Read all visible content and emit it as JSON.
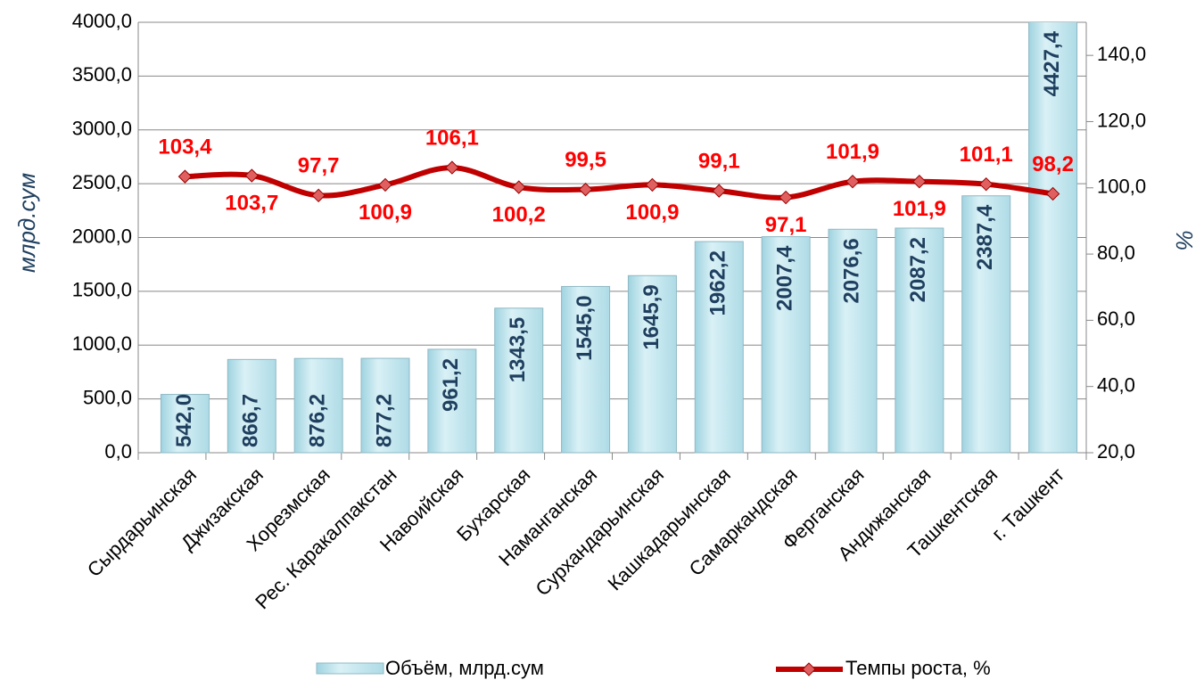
{
  "chart_data": {
    "type": "bar-line",
    "y_label": "млрд.сум",
    "y2_label": "%",
    "categories": [
      "Сырдарьинская",
      "Джизакская",
      "Хорезмская",
      "Рес. Каракалпакстан",
      "Навоийская",
      "Бухарская",
      "Наманганская",
      "Сурхандарьинская",
      "Кашкадарьинская",
      "Самаркандская",
      "Ферганская",
      "Андижанская",
      "Ташкентская",
      "г. Ташкент"
    ],
    "series": [
      {
        "name": "Объём, млрд.сум",
        "type": "bar",
        "color": "#bfe6ef",
        "axis": "y",
        "values": [
          542.0,
          866.7,
          876.2,
          877.2,
          961.2,
          1343.5,
          1545.0,
          1645.9,
          1962.2,
          2007.4,
          2076.6,
          2087.2,
          2387.4,
          4427.4
        ],
        "value_labels": [
          "542,0",
          "866,7",
          "876,2",
          "877,2",
          "961,2",
          "1343,5",
          "1545,0",
          "1645,9",
          "1962,2",
          "2007,4",
          "2076,6",
          "2087,2",
          "2387,4",
          "4427,4"
        ]
      },
      {
        "name": "Темпы роста, %",
        "type": "line",
        "color": "#c00000",
        "axis": "y2",
        "values": [
          103.4,
          103.7,
          97.7,
          100.9,
          106.1,
          100.2,
          99.5,
          100.9,
          99.1,
          97.1,
          101.9,
          101.9,
          101.1,
          98.2
        ],
        "value_labels": [
          "103,4",
          "103,7",
          "97,7",
          "100,9",
          "106,1",
          "100,2",
          "99,5",
          "100,9",
          "99,1",
          "97,1",
          "101,9",
          "101,9",
          "101,1",
          "98,2"
        ]
      }
    ],
    "ylim": [
      0,
      4000
    ],
    "yticks": [
      {
        "value": 0,
        "label": "0,0"
      },
      {
        "value": 500,
        "label": "500,0"
      },
      {
        "value": 1000,
        "label": "1000,0"
      },
      {
        "value": 1500,
        "label": "1500,0"
      },
      {
        "value": 2000,
        "label": "2000,0"
      },
      {
        "value": 2500,
        "label": "2500,0"
      },
      {
        "value": 3000,
        "label": "3000,0"
      },
      {
        "value": 3500,
        "label": "3500,0"
      },
      {
        "value": 4000,
        "label": "4000,0"
      }
    ],
    "y2lim": [
      20,
      150
    ],
    "y2ticks": [
      {
        "value": 20,
        "label": "20,0"
      },
      {
        "value": 40,
        "label": "40,0"
      },
      {
        "value": 60,
        "label": "60,0"
      },
      {
        "value": 80,
        "label": "80,0"
      },
      {
        "value": 100,
        "label": "100,0"
      },
      {
        "value": 120,
        "label": "120,0"
      },
      {
        "value": 140,
        "label": "140,0"
      }
    ],
    "grid": true,
    "legend": "bottom"
  }
}
